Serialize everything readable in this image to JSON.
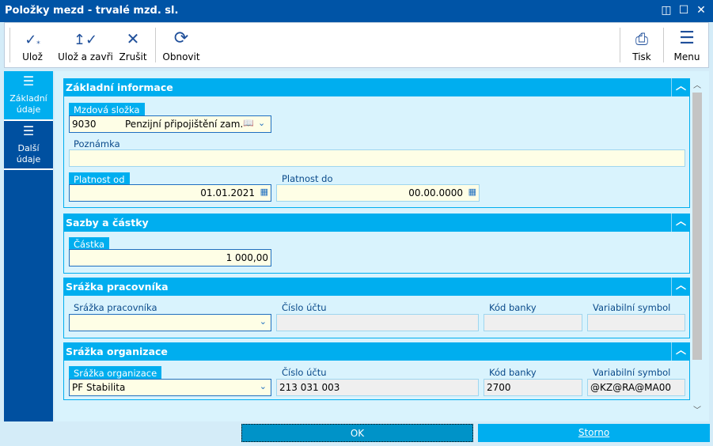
{
  "window": {
    "title": "Položky mezd - trvalé mzd. sl."
  },
  "toolbar": {
    "save": "Ulož",
    "save_close": "Ulož a zavři",
    "cancel": "Zrušit",
    "refresh": "Obnovit",
    "print": "Tisk",
    "menu": "Menu"
  },
  "sidebar": {
    "items": [
      {
        "label": "Základní údaje"
      },
      {
        "label": "Další údaje"
      }
    ]
  },
  "sections": {
    "basic": {
      "title": "Základní informace",
      "wage_component_label": "Mzdová složka",
      "wage_component_code": "9030",
      "wage_component_name": "Penzijní připojištění zam.",
      "note_label": "Poznámka",
      "note_value": "",
      "valid_from_label": "Platnost od",
      "valid_from": "01.01.2021",
      "valid_to_label": "Platnost do",
      "valid_to": "00.00.0000"
    },
    "rates": {
      "title": "Sazby a částky",
      "amount_label": "Částka",
      "amount": "1 000,00"
    },
    "employee": {
      "title": "Srážka pracovníka",
      "deduction_label": "Srážka pracovníka",
      "deduction_value": "",
      "account_label": "Číslo účtu",
      "account": "",
      "bank_label": "Kód banky",
      "bank": "",
      "vs_label": "Variabilní symbol",
      "vs": ""
    },
    "org": {
      "title": "Srážka organizace",
      "deduction_label": "Srážka organizace",
      "deduction_value": "PF Stabilita",
      "account_label": "Číslo účtu",
      "account": "213 031 003",
      "bank_label": "Kód banky",
      "bank": "2700",
      "vs_label": "Variabilní symbol",
      "vs": "@KZ@RA@MA00"
    }
  },
  "footer": {
    "ok": "OK",
    "cancel": "Storno"
  },
  "colors": {
    "title_bar": "#0054a6",
    "section_header": "#00aeef",
    "input_bg": "#fefee6"
  }
}
